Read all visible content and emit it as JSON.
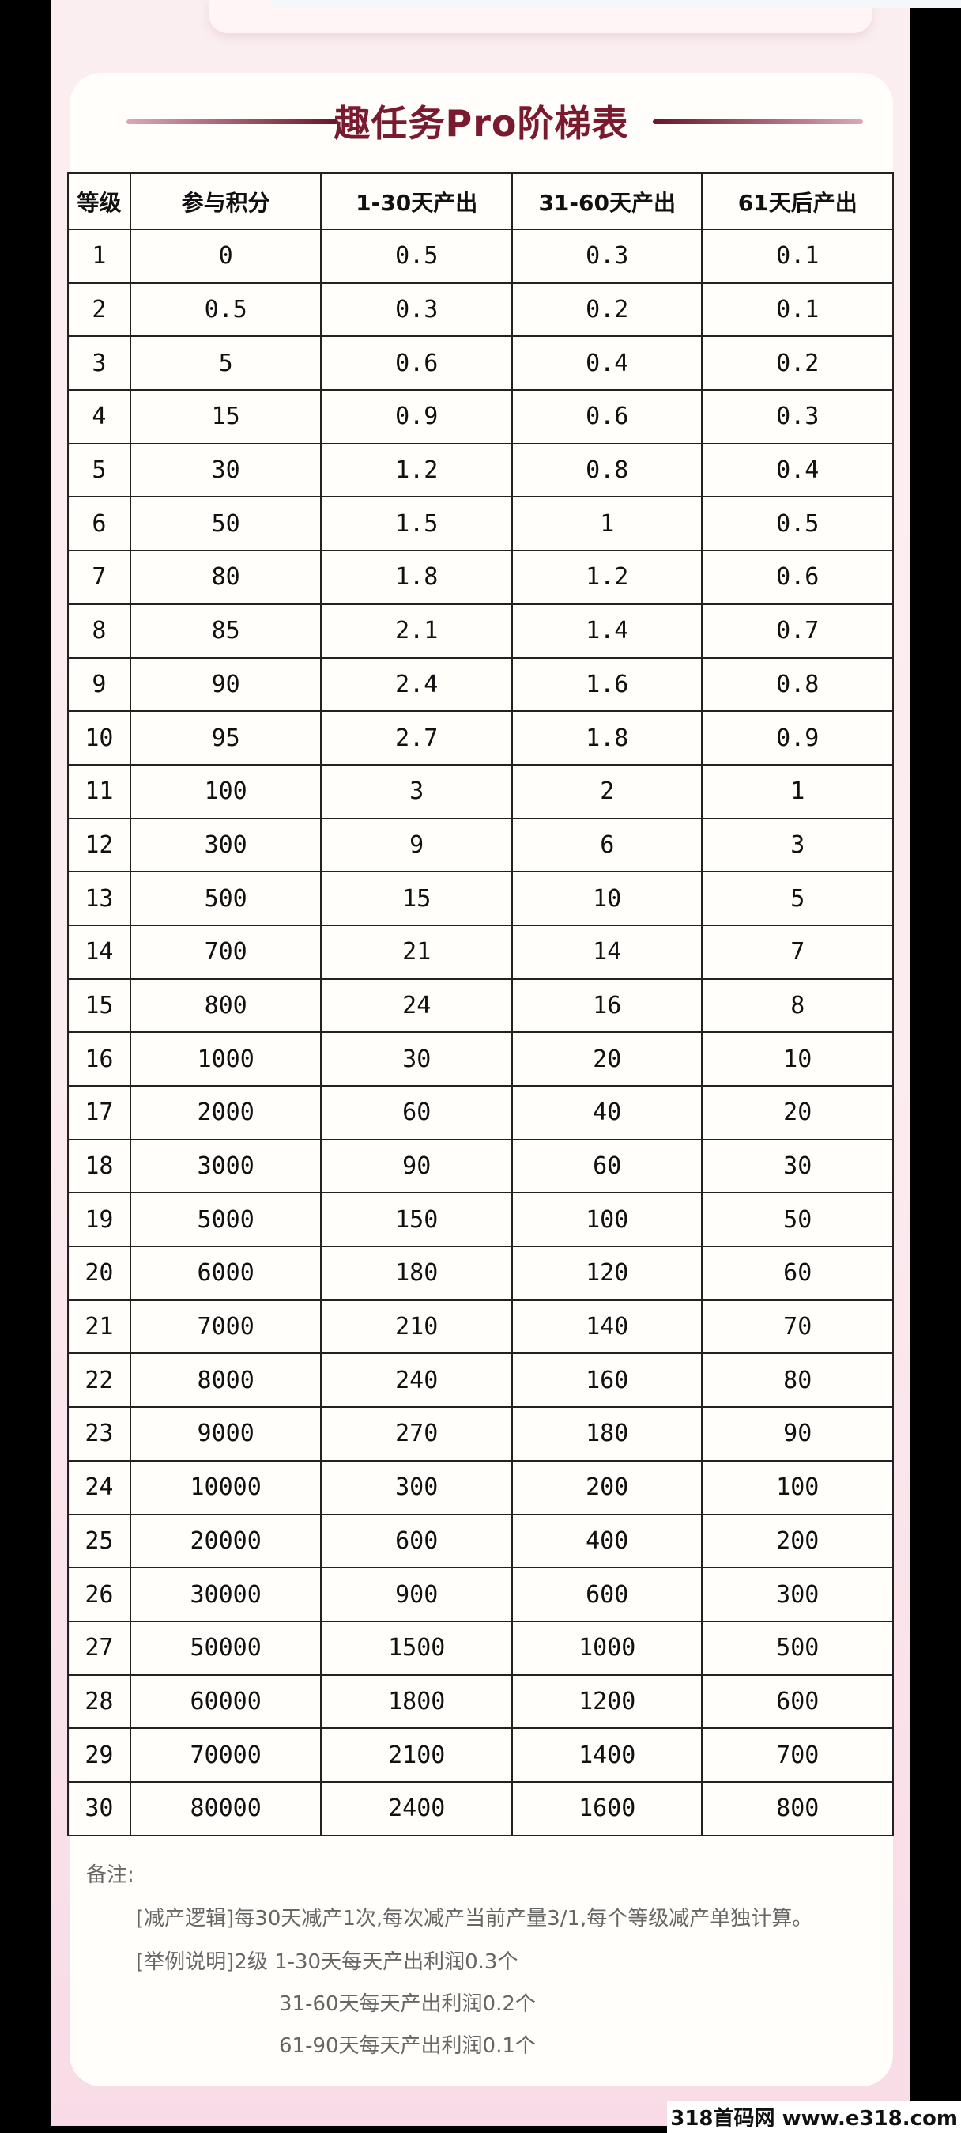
{
  "title": "趣任务Pro阶梯表",
  "table": {
    "headers": [
      "等级",
      "参与积分",
      "1-30天产出",
      "31-60天产出",
      "61天后产出"
    ],
    "rows": [
      [
        "1",
        "0",
        "0.5",
        "0.3",
        "0.1"
      ],
      [
        "2",
        "0.5",
        "0.3",
        "0.2",
        "0.1"
      ],
      [
        "3",
        "5",
        "0.6",
        "0.4",
        "0.2"
      ],
      [
        "4",
        "15",
        "0.9",
        "0.6",
        "0.3"
      ],
      [
        "5",
        "30",
        "1.2",
        "0.8",
        "0.4"
      ],
      [
        "6",
        "50",
        "1.5",
        "1",
        "0.5"
      ],
      [
        "7",
        "80",
        "1.8",
        "1.2",
        "0.6"
      ],
      [
        "8",
        "85",
        "2.1",
        "1.4",
        "0.7"
      ],
      [
        "9",
        "90",
        "2.4",
        "1.6",
        "0.8"
      ],
      [
        "10",
        "95",
        "2.7",
        "1.8",
        "0.9"
      ],
      [
        "11",
        "100",
        "3",
        "2",
        "1"
      ],
      [
        "12",
        "300",
        "9",
        "6",
        "3"
      ],
      [
        "13",
        "500",
        "15",
        "10",
        "5"
      ],
      [
        "14",
        "700",
        "21",
        "14",
        "7"
      ],
      [
        "15",
        "800",
        "24",
        "16",
        "8"
      ],
      [
        "16",
        "1000",
        "30",
        "20",
        "10"
      ],
      [
        "17",
        "2000",
        "60",
        "40",
        "20"
      ],
      [
        "18",
        "3000",
        "90",
        "60",
        "30"
      ],
      [
        "19",
        "5000",
        "150",
        "100",
        "50"
      ],
      [
        "20",
        "6000",
        "180",
        "120",
        "60"
      ],
      [
        "21",
        "7000",
        "210",
        "140",
        "70"
      ],
      [
        "22",
        "8000",
        "240",
        "160",
        "80"
      ],
      [
        "23",
        "9000",
        "270",
        "180",
        "90"
      ],
      [
        "24",
        "10000",
        "300",
        "200",
        "100"
      ],
      [
        "25",
        "20000",
        "600",
        "400",
        "200"
      ],
      [
        "26",
        "30000",
        "900",
        "600",
        "300"
      ],
      [
        "27",
        "50000",
        "1500",
        "1000",
        "500"
      ],
      [
        "28",
        "60000",
        "1800",
        "1200",
        "600"
      ],
      [
        "29",
        "70000",
        "2100",
        "1400",
        "700"
      ],
      [
        "30",
        "80000",
        "2400",
        "1600",
        "800"
      ]
    ]
  },
  "notes": {
    "label": "备注:",
    "lines": [
      "[减产逻辑]每30天减产1次,每次减产当前产量3/1,每个等级减产单独计算。",
      "[举例说明]2级 1-30天每天产出利润0.3个",
      "31-60天每天产出利润0.2个",
      "61-90天每天产出利润0.1个"
    ]
  },
  "watermark": "318首码网 www.e318.com",
  "colors": {
    "title": "#7a1a2e",
    "background": "#fbecef",
    "card": "#fffefb"
  }
}
